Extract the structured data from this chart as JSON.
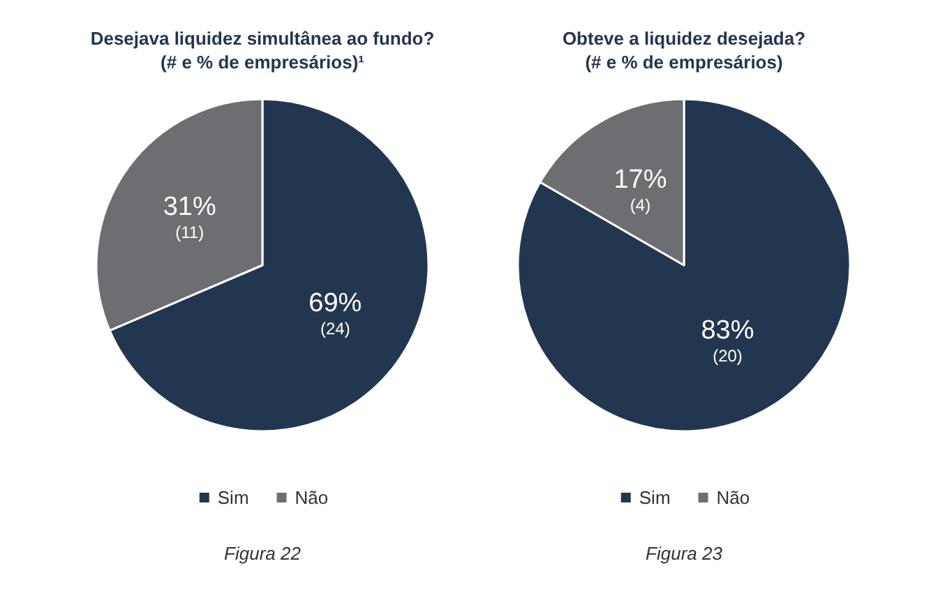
{
  "chart_data": [
    {
      "type": "pie",
      "title": "Desejava liquidez simultânea ao fundo?",
      "subtitle": "(# e % de empresários)¹",
      "categories": [
        "Sim",
        "Não"
      ],
      "values": [
        24,
        11
      ],
      "colors": [
        "#233650",
        "#6d6e71"
      ],
      "value_labels": [
        "69%\n(24)",
        "31%\n(11)"
      ],
      "legend": "bottom",
      "annotations": [
        "Figura 22"
      ]
    },
    {
      "type": "pie",
      "title": "Obteve a liquidez desejada?",
      "subtitle": "(# e % de empresários)",
      "categories": [
        "Sim",
        "Não"
      ],
      "values": [
        20,
        4
      ],
      "colors": [
        "#233650",
        "#6d6e71"
      ],
      "value_labels": [
        "83%\n(20)",
        "17%\n(4)"
      ],
      "legend": "bottom",
      "annotations": [
        "Figura 23"
      ]
    }
  ]
}
